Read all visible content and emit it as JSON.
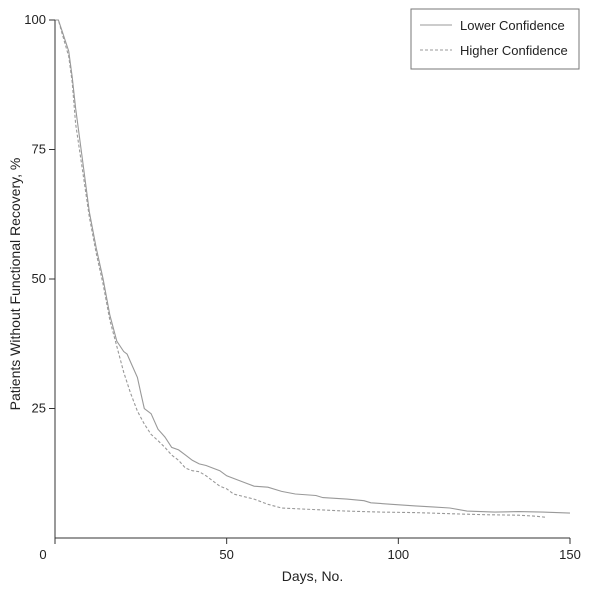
{
  "chart_data": {
    "type": "line",
    "xlabel": "Days, No.",
    "ylabel": "Patients Without Functional Recovery, %",
    "xlim": [
      0,
      150
    ],
    "ylim": [
      0,
      100
    ],
    "xticks": [
      0,
      50,
      100,
      150
    ],
    "yticks": [
      25,
      50,
      75,
      100
    ],
    "grid": false,
    "legend": "top-right",
    "series": [
      {
        "name": "Lower Confidence",
        "style": "solid",
        "color": "#999999",
        "points": [
          [
            0,
            100
          ],
          [
            1,
            100
          ],
          [
            2,
            98
          ],
          [
            4,
            94
          ],
          [
            5,
            89
          ],
          [
            6,
            83
          ],
          [
            8,
            73
          ],
          [
            10,
            63
          ],
          [
            12,
            56
          ],
          [
            14,
            50
          ],
          [
            16,
            43
          ],
          [
            18,
            38
          ],
          [
            20,
            36
          ],
          [
            21,
            35.5
          ],
          [
            22,
            34
          ],
          [
            24,
            31
          ],
          [
            25,
            28
          ],
          [
            26,
            25
          ],
          [
            28,
            24
          ],
          [
            30,
            21
          ],
          [
            32,
            19.5
          ],
          [
            34,
            17.5
          ],
          [
            36,
            17
          ],
          [
            38,
            16
          ],
          [
            40,
            15
          ],
          [
            42,
            14.3
          ],
          [
            44,
            14
          ],
          [
            46,
            13.5
          ],
          [
            48,
            13
          ],
          [
            50,
            12
          ],
          [
            52,
            11.5
          ],
          [
            54,
            11
          ],
          [
            56,
            10.5
          ],
          [
            58,
            10
          ],
          [
            62,
            9.8
          ],
          [
            66,
            9
          ],
          [
            70,
            8.5
          ],
          [
            76,
            8.2
          ],
          [
            78,
            7.8
          ],
          [
            85,
            7.5
          ],
          [
            90,
            7.2
          ],
          [
            92,
            6.8
          ],
          [
            98,
            6.5
          ],
          [
            105,
            6.2
          ],
          [
            110,
            6
          ],
          [
            115,
            5.8
          ],
          [
            120,
            5.2
          ],
          [
            128,
            5
          ],
          [
            135,
            5.1
          ],
          [
            142,
            5
          ],
          [
            150,
            4.8
          ]
        ]
      },
      {
        "name": "Higher Confidence",
        "style": "dashed",
        "color": "#999999",
        "points": [
          [
            0,
            100
          ],
          [
            1,
            100
          ],
          [
            2,
            97.5
          ],
          [
            4,
            93
          ],
          [
            5,
            88
          ],
          [
            6,
            80
          ],
          [
            8,
            71
          ],
          [
            10,
            62
          ],
          [
            12,
            55
          ],
          [
            14,
            49
          ],
          [
            16,
            42
          ],
          [
            18,
            37
          ],
          [
            20,
            32
          ],
          [
            22,
            28
          ],
          [
            24,
            24.5
          ],
          [
            26,
            22
          ],
          [
            28,
            20
          ],
          [
            30,
            18.8
          ],
          [
            32,
            17.5
          ],
          [
            34,
            16
          ],
          [
            36,
            15
          ],
          [
            38,
            13.5
          ],
          [
            40,
            13
          ],
          [
            42,
            12.8
          ],
          [
            44,
            12
          ],
          [
            46,
            11
          ],
          [
            48,
            10
          ],
          [
            50,
            9.5
          ],
          [
            52,
            8.5
          ],
          [
            55,
            8
          ],
          [
            58,
            7.5
          ],
          [
            62,
            6.5
          ],
          [
            66,
            5.8
          ],
          [
            75,
            5.5
          ],
          [
            85,
            5.2
          ],
          [
            95,
            5
          ],
          [
            105,
            4.9
          ],
          [
            115,
            4.7
          ],
          [
            125,
            4.5
          ],
          [
            135,
            4.4
          ],
          [
            140,
            4.2
          ],
          [
            143,
            4
          ]
        ]
      }
    ]
  }
}
